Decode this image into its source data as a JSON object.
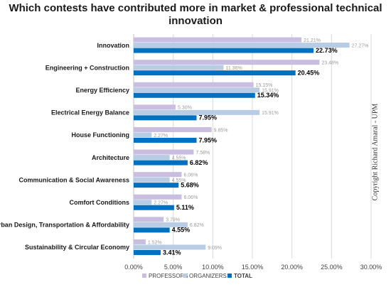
{
  "chart_data": {
    "type": "bar",
    "orientation": "horizontal",
    "title_line1": "Which contests have contributed more in market & professional technical",
    "title_line2": "innovation",
    "categories": [
      "Innovation",
      "Engineering + Construction",
      "Energy Efficiency",
      "Electrical Energy Balance",
      "House Functioning",
      "Architecture",
      "Communication & Social Awareness",
      "Comfort Conditions",
      "Urban Design, Transportation & Affordability",
      "Sustainability & Circular Economy"
    ],
    "series": [
      {
        "name": "PROFESSORS",
        "color": "#c9bde0",
        "values": [
          21.21,
          23.48,
          15.15,
          5.3,
          9.85,
          7.58,
          6.06,
          6.06,
          3.79,
          1.52
        ],
        "labels": [
          "21.21%",
          "23.48%",
          "15.15%",
          "5.30%",
          "9.85%",
          "7.58%",
          "6.06%",
          "6.06%",
          "3.79%",
          "1.52%"
        ]
      },
      {
        "name": "ORGANIZERS",
        "color": "#b8cce4",
        "values": [
          27.27,
          11.36,
          15.91,
          15.91,
          2.27,
          4.55,
          4.55,
          2.27,
          6.82,
          9.09
        ],
        "labels": [
          "27.27%",
          "11.36%",
          "15.91%",
          "15.91%",
          "2.27%",
          "4.55%",
          "4.55%",
          "2.27%",
          "6.82%",
          "9.09%"
        ]
      },
      {
        "name": "TOTAL",
        "color": "#0070c0",
        "values": [
          22.73,
          20.45,
          15.34,
          7.95,
          7.95,
          6.82,
          5.68,
          5.11,
          4.55,
          3.41
        ],
        "labels": [
          "22.73%",
          "20.45%",
          "15.34%",
          "7.95%",
          "7.95%",
          "6.82%",
          "5.68%",
          "5.11%",
          "4.55%",
          "3.41%"
        ]
      }
    ],
    "xlim": [
      0,
      30
    ],
    "xticks": [
      "0.00%",
      "5.00%",
      "10.00%",
      "15.00%",
      "20.00%",
      "25.00%",
      "30.00%"
    ],
    "legend_position": "bottom",
    "grid": "vertical"
  },
  "copyright": "Copyright Richard Amaral - UPM"
}
